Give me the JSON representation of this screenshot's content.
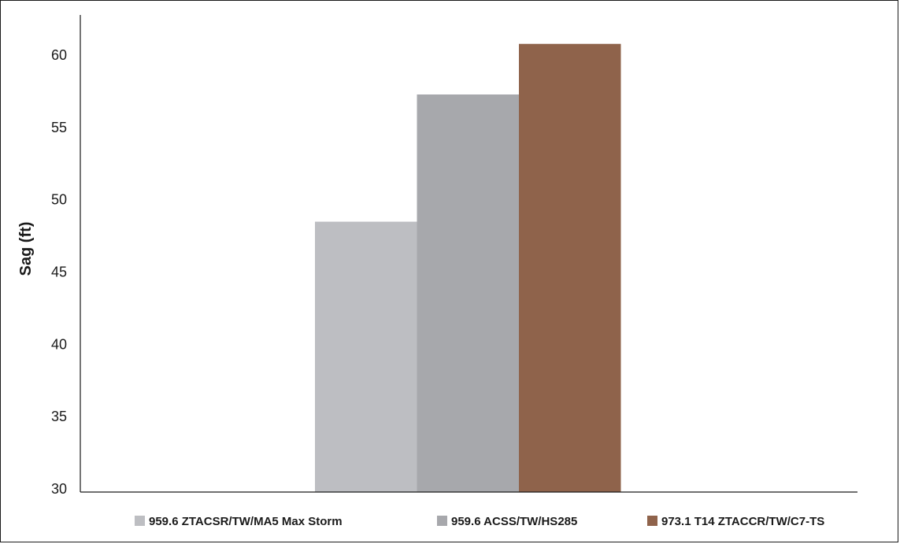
{
  "chart_data": {
    "type": "bar",
    "title": "",
    "xlabel": "",
    "ylabel": "Sag (ft)",
    "ylim": [
      30,
      63
    ],
    "yticks": [
      30,
      35,
      40,
      45,
      50,
      55,
      60
    ],
    "grid": false,
    "legend_position": "bottom",
    "series": [
      {
        "name": "959.6 ZTACSR/TW/MA5 Max Storm",
        "value": 48.7,
        "color": "#bdbec2"
      },
      {
        "name": "959.6 ACSS/TW/HS285",
        "value": 57.5,
        "color": "#a7a8ac"
      },
      {
        "name": "973.1 T14 ZTACCR/TW/C7-TS",
        "value": 61.0,
        "color": "#8f634b"
      }
    ]
  }
}
